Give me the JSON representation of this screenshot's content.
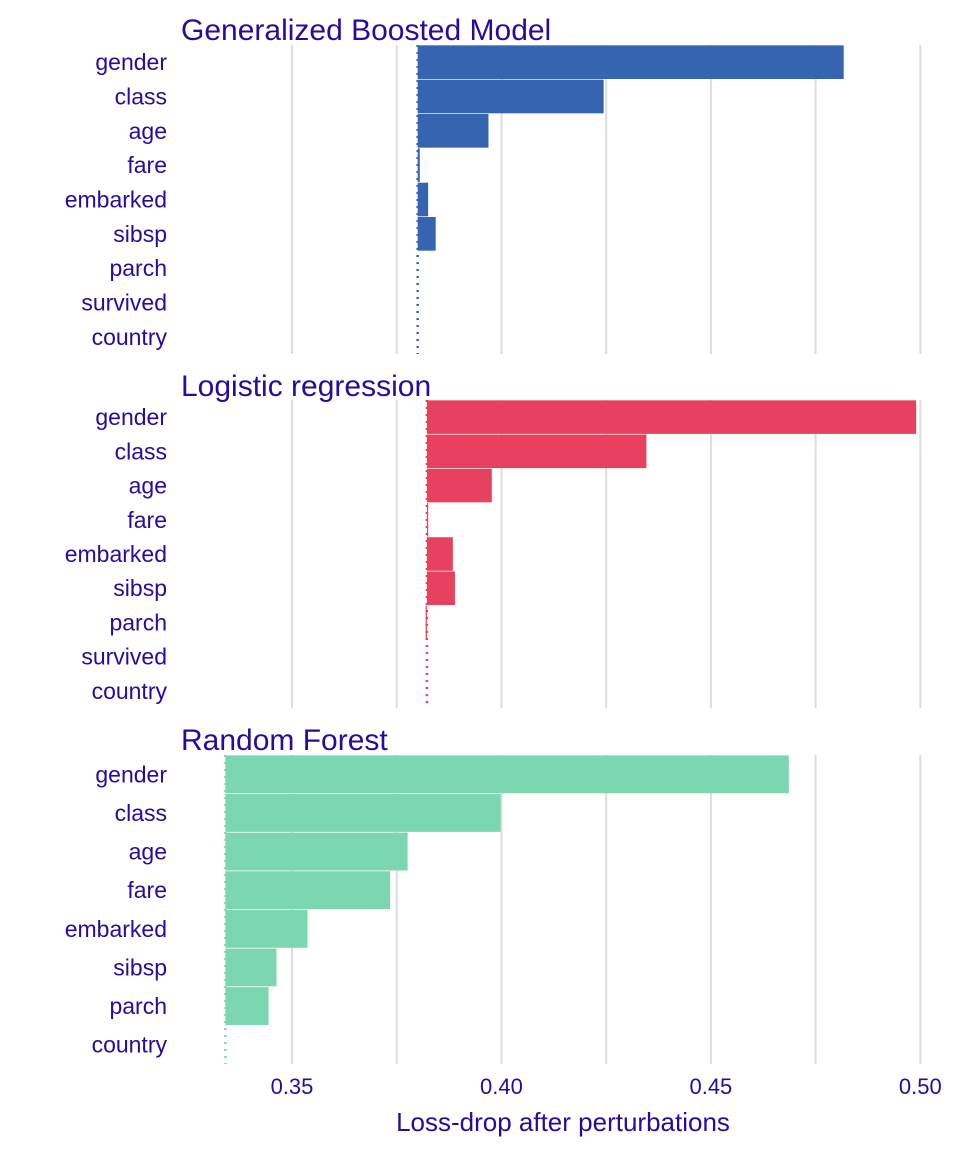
{
  "chart_data": {
    "type": "bar",
    "orientation": "horizontal",
    "xlabel": "Loss-drop after perturbations",
    "xlim": [
      0.3235,
      0.5035
    ],
    "xticks": [
      "0.35",
      "0.40",
      "0.45",
      "0.50"
    ],
    "xtick_values": [
      0.35,
      0.4,
      0.45,
      0.5
    ],
    "minor_gridlines": [
      0.375,
      0.425,
      0.475
    ],
    "grid": true,
    "legend": "none",
    "text_color": "#2b0a9b",
    "grid_color": "#dddddd",
    "panels": [
      {
        "title": "Generalized Boosted Model",
        "color": "#3564b0",
        "baseline": 0.38,
        "categories": [
          "gender",
          "class",
          "age",
          "fare",
          "embarked",
          "sibsp",
          "parch",
          "survived",
          "country"
        ],
        "values": [
          0.4817,
          0.4244,
          0.3969,
          0.3805,
          0.3825,
          0.3843,
          0.3801,
          0.38,
          0.38
        ]
      },
      {
        "title": "Logistic regression",
        "color": "#e84160",
        "baseline": 0.3822,
        "categories": [
          "gender",
          "class",
          "age",
          "fare",
          "embarked",
          "sibsp",
          "parch",
          "survived",
          "country"
        ],
        "values": [
          0.499,
          0.4346,
          0.3977,
          0.3825,
          0.3884,
          0.3889,
          0.3819,
          0.3822,
          0.3822
        ]
      },
      {
        "title": "Random Forest",
        "color": "#7cd6af",
        "baseline": 0.3341,
        "categories": [
          "gender",
          "class",
          "age",
          "fare",
          "embarked",
          "sibsp",
          "parch",
          "country"
        ],
        "values": [
          0.4686,
          0.3998,
          0.3776,
          0.3734,
          0.3537,
          0.3463,
          0.3444,
          0.3341
        ]
      }
    ]
  }
}
